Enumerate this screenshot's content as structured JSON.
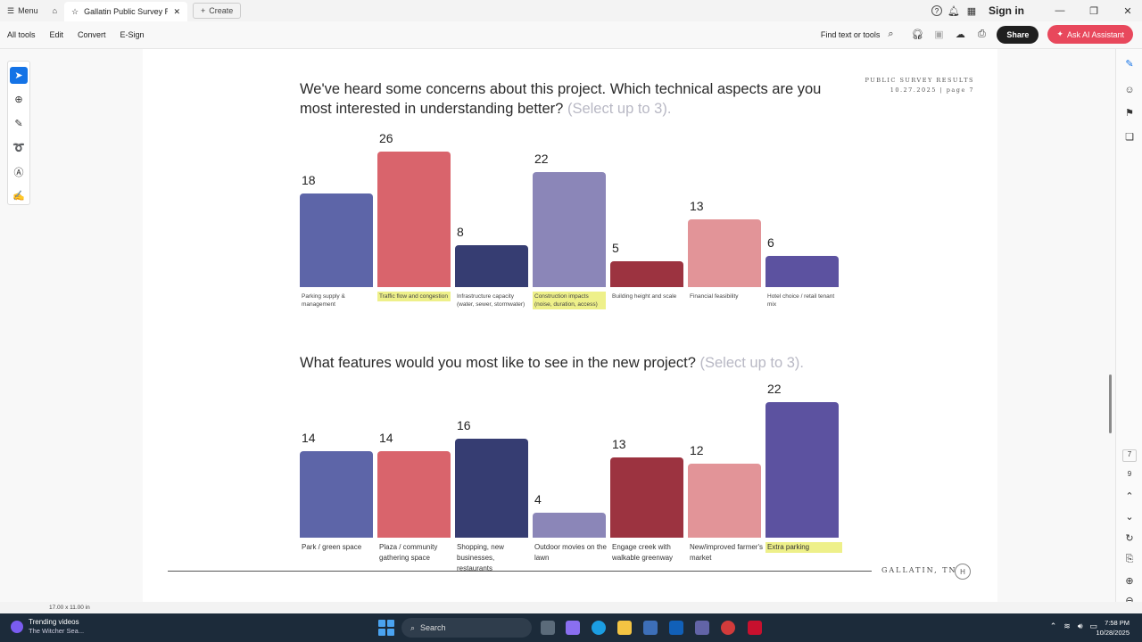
{
  "titlebar": {
    "menu_label": "Menu",
    "tab_title": "Gallatin Public Survey R...",
    "create_label": "Create",
    "sign_in": "Sign in"
  },
  "toolbar": {
    "items": [
      "All tools",
      "Edit",
      "Convert",
      "E-Sign"
    ],
    "find_placeholder": "Find text or tools",
    "share_label": "Share",
    "ai_label": "Ask AI Assistant"
  },
  "document": {
    "header_label": "PUBLIC SURVEY RESULTS",
    "header_sub": "10.27.2025 | page 7",
    "footer_location": "GALLATIN, TN",
    "footer_logo": "H"
  },
  "chart_data": [
    {
      "type": "bar",
      "title": "We've heard some concerns about this project. Which technical aspects are you most interested in understanding better?",
      "title_hint": "(Select up to 3).",
      "categories": [
        "Parking supply & management",
        "Traffic flow and congestion",
        "Infrastructure capacity (water, sewer, stormwater)",
        "Construction impacts (noise, duration, access)",
        "Building height and scale",
        "Financial feasibility",
        "Hotel choice / retail tenant mix"
      ],
      "values": [
        18,
        26,
        8,
        22,
        5,
        13,
        6
      ],
      "colors": [
        "#5d65a8",
        "#d9646c",
        "#363d72",
        "#8b86b8",
        "#9c3340",
        "#e29498",
        "#5c52a0"
      ],
      "highlighted": [
        false,
        true,
        false,
        true,
        false,
        false,
        false
      ],
      "ylim": [
        0,
        26
      ]
    },
    {
      "type": "bar",
      "title": "What features would you most like to see in the new project?",
      "title_hint": "(Select up to 3).",
      "categories": [
        "Park / green space",
        "Plaza / community gathering space",
        "Shopping, new businesses, restaurants",
        "Outdoor movies on the lawn",
        "Engage creek with walkable greenway",
        "New/improved farmer's market",
        "Extra parking"
      ],
      "values": [
        14,
        14,
        16,
        4,
        13,
        12,
        22
      ],
      "colors": [
        "#5d65a8",
        "#d9646c",
        "#363d72",
        "#8b86b8",
        "#9c3340",
        "#e29498",
        "#5c52a0"
      ],
      "highlighted": [
        false,
        false,
        false,
        false,
        false,
        false,
        true
      ],
      "ylim": [
        0,
        22
      ]
    }
  ],
  "statusbar": {
    "page_size": "17.00 x 11.00 in"
  },
  "rightrail": {
    "page_current": "7",
    "page_total": "9"
  },
  "taskbar": {
    "widget_title": "Trending videos",
    "widget_sub": "The Witcher Sea...",
    "search_placeholder": "Search",
    "time": "7:58 PM",
    "date": "10/28/2025"
  }
}
